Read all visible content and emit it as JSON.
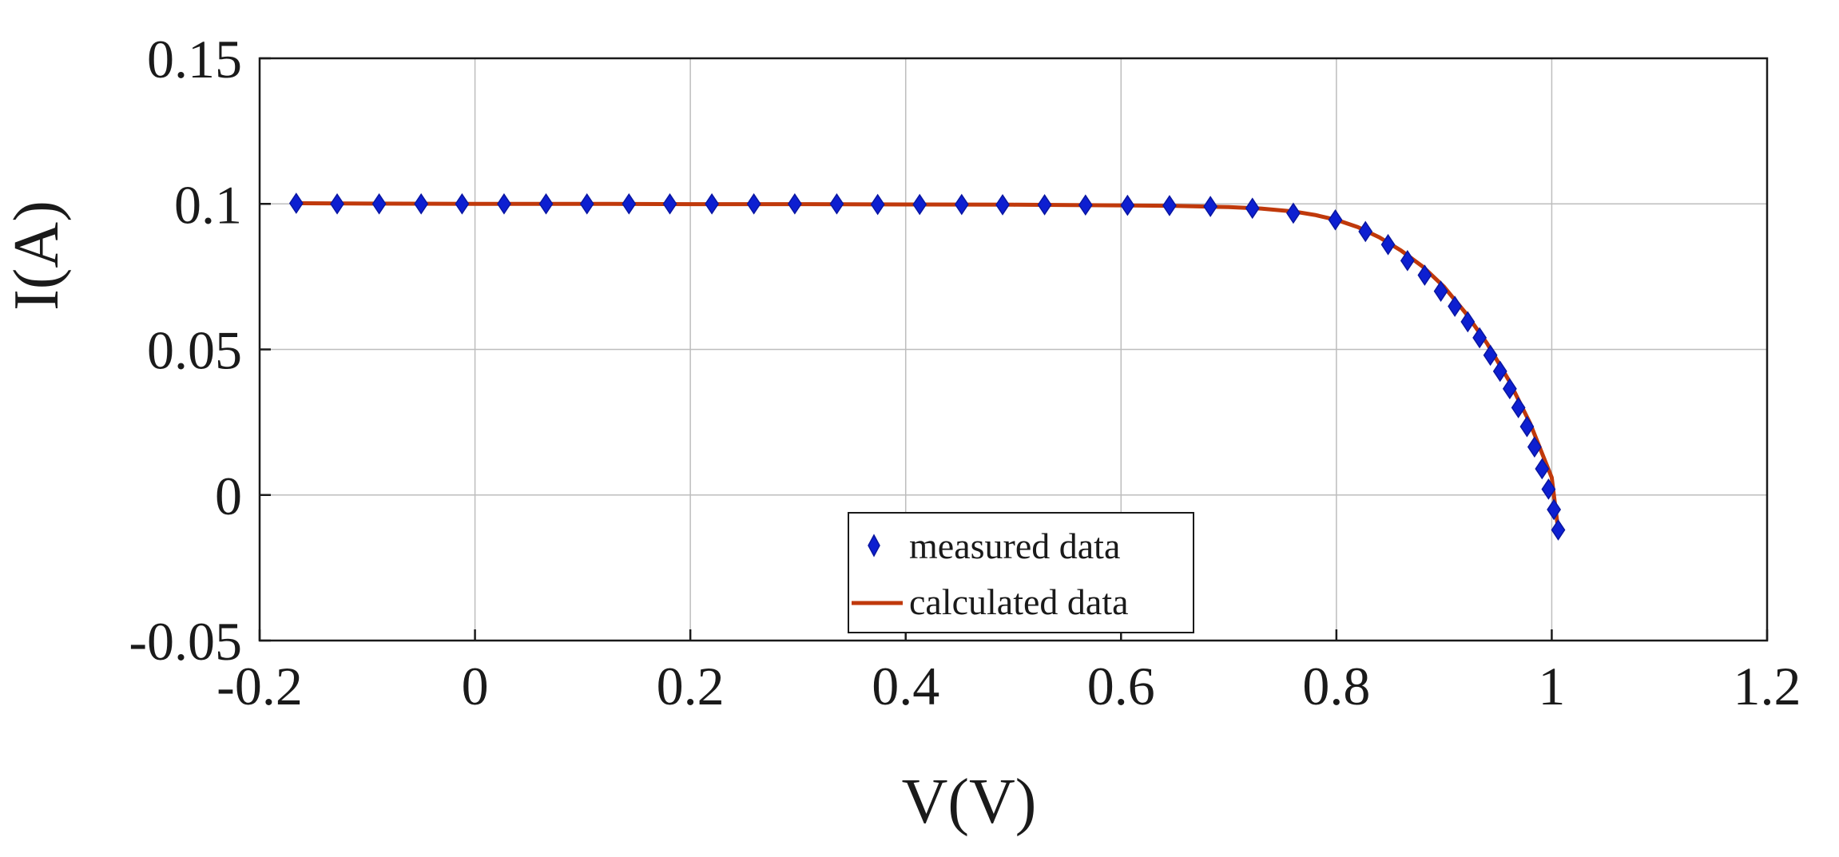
{
  "chart_data": {
    "type": "scatter",
    "title": "",
    "xlabel": "V(V)",
    "ylabel": "I(A)",
    "xlim": [
      -0.2,
      1.2
    ],
    "ylim": [
      -0.05,
      0.15
    ],
    "xticks": [
      -0.2,
      0,
      0.2,
      0.4,
      0.6,
      0.8,
      1,
      1.2
    ],
    "xtick_labels": [
      "-0.2",
      "0",
      "0.2",
      "0.4",
      "0.6",
      "0.8",
      "1",
      "1.2"
    ],
    "yticks": [
      -0.05,
      0,
      0.05,
      0.1,
      0.15
    ],
    "ytick_labels": [
      "-0.05",
      "0",
      "0.05",
      "0.1",
      "0.15"
    ],
    "grid": true,
    "legend_position": "bottom-center",
    "series": [
      {
        "name": "measured data",
        "type": "scatter",
        "marker": "diamond",
        "color": "#0d1fd1",
        "x": [
          -0.166,
          -0.128,
          -0.089,
          -0.05,
          -0.012,
          0.027,
          0.066,
          0.104,
          0.143,
          0.181,
          0.22,
          0.259,
          0.297,
          0.336,
          0.374,
          0.413,
          0.452,
          0.49,
          0.529,
          0.567,
          0.606,
          0.645,
          0.683,
          0.722,
          0.76,
          0.799,
          0.827,
          0.848,
          0.866,
          0.882,
          0.897,
          0.91,
          0.922,
          0.933,
          0.943,
          0.952,
          0.961,
          0.969,
          0.977,
          0.984,
          0.991,
          0.997,
          1.002,
          1.006
        ],
        "y": [
          0.1002,
          0.1,
          0.1,
          0.1,
          0.1,
          0.1,
          0.1,
          0.1,
          0.1,
          0.1,
          0.1,
          0.1,
          0.1,
          0.1,
          0.0998,
          0.0998,
          0.0998,
          0.0997,
          0.0997,
          0.0996,
          0.0995,
          0.0994,
          0.0991,
          0.0985,
          0.0968,
          0.0945,
          0.0905,
          0.086,
          0.0805,
          0.0755,
          0.07,
          0.0648,
          0.0595,
          0.054,
          0.048,
          0.0425,
          0.0365,
          0.03,
          0.0235,
          0.0165,
          0.009,
          0.002,
          -0.005,
          -0.012
        ]
      },
      {
        "name": "calculated data",
        "type": "line",
        "color": "#c0390b",
        "x": [
          -0.166,
          -0.1,
          0.0,
          0.1,
          0.2,
          0.3,
          0.4,
          0.5,
          0.6,
          0.65,
          0.7,
          0.73,
          0.76,
          0.78,
          0.8,
          0.82,
          0.84,
          0.86,
          0.88,
          0.9,
          0.92,
          0.94,
          0.96,
          0.98,
          1.0,
          1.006
        ],
        "y": [
          0.1002,
          0.1001,
          0.1,
          0.1,
          0.0999,
          0.0999,
          0.0998,
          0.0997,
          0.0995,
          0.0993,
          0.0989,
          0.0984,
          0.0974,
          0.0962,
          0.0945,
          0.092,
          0.0885,
          0.084,
          0.0785,
          0.0715,
          0.0625,
          0.052,
          0.0395,
          0.0245,
          0.006,
          -0.012
        ]
      }
    ]
  }
}
